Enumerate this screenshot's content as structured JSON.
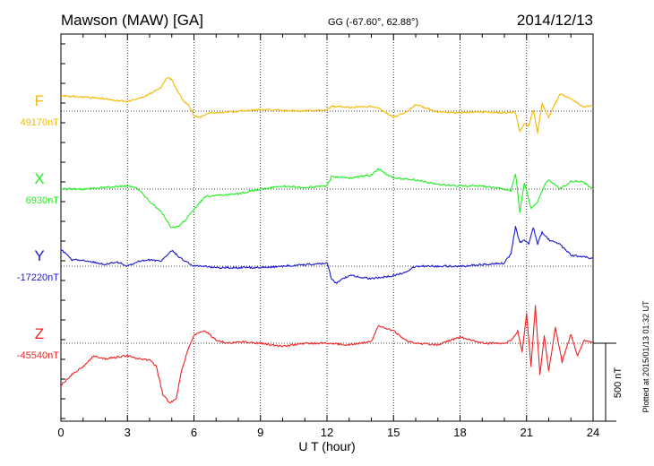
{
  "header": {
    "station": "Mawson (MAW)  [GA]",
    "coords": "GG (-67.60°,  62.88°)",
    "date": "2014/12/13"
  },
  "footer": {
    "plotted": "Plotted at 2015/01/13 01:32 UT"
  },
  "chart_data": {
    "type": "line",
    "xlabel": "U T (hour)",
    "xlim": [
      0,
      24
    ],
    "xticks": [
      "0",
      "3",
      "6",
      "9",
      "12",
      "15",
      "18",
      "21",
      "24"
    ],
    "grid": true,
    "scale_bar": {
      "label": "500 nT",
      "value": 500,
      "unit": "nT"
    },
    "series": [
      {
        "name": "F",
        "baseline_label": "49170nT",
        "baseline": 49170,
        "color": "#f5b800",
        "x": [
          0,
          1,
          2,
          3,
          3.5,
          4,
          4.5,
          4.8,
          5.0,
          5.3,
          5.5,
          5.8,
          6.0,
          6.3,
          6.7,
          7,
          8,
          9,
          10,
          11,
          12,
          12.2,
          13,
          14,
          14.3,
          15,
          15.5,
          16,
          17,
          18,
          19,
          20,
          20.5,
          20.7,
          20.9,
          21.1,
          21.3,
          21.5,
          21.7,
          22,
          22.5,
          23,
          23.5,
          24
        ],
        "values": [
          100,
          90,
          80,
          60,
          80,
          110,
          150,
          220,
          200,
          120,
          70,
          30,
          -30,
          -40,
          -10,
          -10,
          0,
          10,
          5,
          0,
          10,
          30,
          25,
          30,
          20,
          -40,
          -10,
          40,
          -5,
          -10,
          -5,
          -10,
          -10,
          -130,
          -80,
          -100,
          10,
          -140,
          50,
          -40,
          110,
          80,
          30,
          30
        ]
      },
      {
        "name": "X",
        "baseline_label": "6930nT",
        "baseline": 6930,
        "color": "#22ee22",
        "x": [
          0,
          1,
          2,
          3,
          3.5,
          4,
          4.5,
          5,
          5.3,
          5.6,
          6,
          6.5,
          7,
          8,
          9,
          10,
          11,
          12,
          12.2,
          13,
          14,
          14.3,
          15,
          16,
          17,
          18,
          19,
          20,
          20.3,
          20.5,
          20.7,
          20.9,
          21.2,
          21.5,
          21.8,
          22,
          22.5,
          23,
          23.5,
          24
        ],
        "values": [
          0,
          0,
          10,
          20,
          0,
          -80,
          -140,
          -250,
          -240,
          -200,
          -130,
          -50,
          -40,
          -30,
          0,
          20,
          10,
          20,
          80,
          70,
          90,
          130,
          70,
          60,
          30,
          20,
          20,
          0,
          -10,
          100,
          -150,
          40,
          -120,
          -80,
          20,
          60,
          0,
          50,
          50,
          0
        ]
      },
      {
        "name": "Y",
        "baseline_label": "-17220nT",
        "baseline": -17220,
        "color": "#1a1acc",
        "x": [
          0,
          0.5,
          1,
          2,
          2.5,
          3,
          3.5,
          4,
          4.5,
          5,
          5.5,
          6,
          6.5,
          7,
          8,
          9,
          10,
          11,
          12,
          12.2,
          12.4,
          12.6,
          13,
          14,
          15,
          15.5,
          16,
          17,
          18,
          19,
          20,
          20.3,
          20.5,
          20.7,
          20.9,
          21.1,
          21.3,
          21.5,
          21.7,
          22,
          22.5,
          23,
          23.5,
          24
        ],
        "values": [
          110,
          40,
          40,
          10,
          30,
          0,
          30,
          40,
          30,
          100,
          40,
          0,
          0,
          -10,
          -10,
          -10,
          0,
          10,
          20,
          -80,
          -110,
          -90,
          -60,
          -80,
          -60,
          -40,
          0,
          0,
          0,
          10,
          20,
          80,
          250,
          150,
          170,
          140,
          250,
          140,
          220,
          170,
          140,
          70,
          60,
          50
        ]
      },
      {
        "name": "Z",
        "baseline_label": "-45540nT",
        "baseline": -45540,
        "color": "#ee2222",
        "x": [
          0,
          0.5,
          1,
          1.5,
          2,
          2.5,
          3,
          3.5,
          4,
          4.3,
          4.6,
          4.9,
          5.2,
          5.4,
          5.7,
          6,
          6.5,
          7,
          7.5,
          8,
          9,
          10,
          11,
          12,
          13,
          14,
          14.3,
          15,
          15.5,
          16,
          17,
          18,
          19,
          20,
          20.4,
          20.6,
          20.8,
          21,
          21.2,
          21.4,
          21.6,
          21.8,
          22,
          22.3,
          22.6,
          23,
          23.3,
          23.6,
          24
        ],
        "values": [
          -270,
          -200,
          -150,
          -80,
          -100,
          -90,
          -80,
          -100,
          -110,
          -150,
          -330,
          -380,
          -360,
          -200,
          -50,
          50,
          80,
          20,
          0,
          10,
          0,
          -20,
          0,
          0,
          -10,
          10,
          110,
          80,
          20,
          0,
          -10,
          40,
          0,
          0,
          30,
          80,
          -60,
          190,
          -150,
          240,
          -200,
          50,
          -180,
          100,
          -120,
          60,
          -80,
          20,
          0
        ]
      }
    ]
  }
}
